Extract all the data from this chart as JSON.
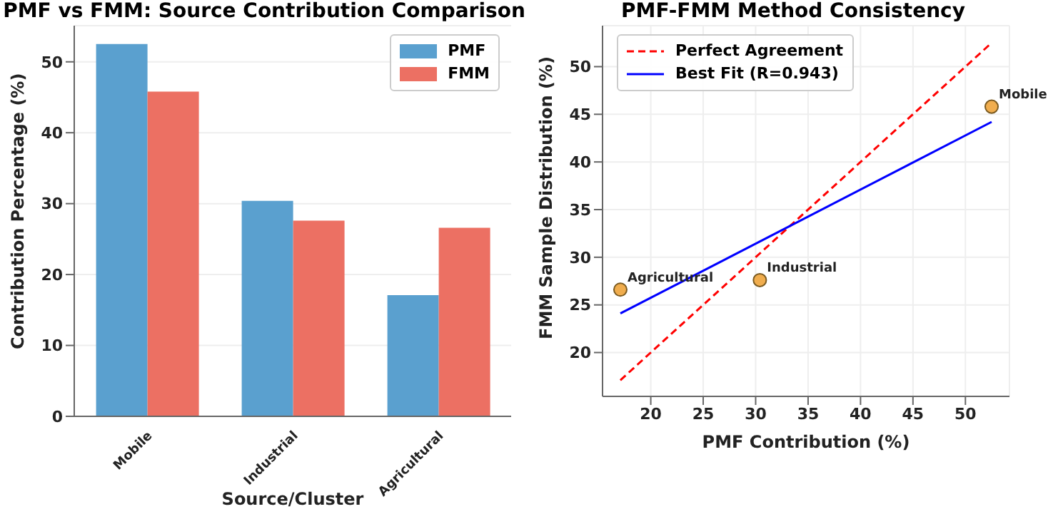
{
  "chart_data": [
    {
      "type": "bar",
      "title": "PMF vs FMM: Source Contribution Comparison",
      "xlabel": "Source/Cluster",
      "ylabel": "Contribution Percentage (%)",
      "categories": [
        "Mobile",
        "Industrial",
        "Agricultural"
      ],
      "series": [
        {
          "name": "PMF",
          "color": "#5aa0cf",
          "values": [
            52.5,
            30.4,
            17.1
          ]
        },
        {
          "name": "FMM",
          "color": "#ec7063",
          "values": [
            45.8,
            27.6,
            26.6
          ]
        }
      ],
      "ylim": [
        0,
        55.1
      ],
      "yticks": [
        0,
        10,
        20,
        30,
        40,
        50
      ],
      "grid": "y",
      "legend": "top right"
    },
    {
      "type": "scatter",
      "title": "PMF-FMM Method Consistency",
      "xlabel": "PMF Contribution (%)",
      "ylabel": "FMM Sample Distribution (%)",
      "series": [
        {
          "type": "line",
          "name": "Perfect Agreement",
          "color": "#ff0000",
          "line_style": "dashed",
          "marker": "none",
          "x": [
            17.1,
            52.5
          ],
          "values": [
            17.1,
            52.5
          ]
        },
        {
          "type": "line",
          "name": "Best Fit (R=0.943)",
          "color": "#0000ff",
          "line_style": "solid",
          "marker": "none",
          "x": [
            17.1,
            52.5
          ],
          "values": [
            24.1,
            44.2
          ]
        },
        {
          "type": "scatter",
          "color": "#f0ad4e",
          "marker": "circle",
          "x": [
            52.5,
            30.4,
            17.1
          ],
          "values": [
            45.8,
            27.6,
            26.6
          ]
        }
      ],
      "annotations": [
        {
          "text": "Mobile",
          "x": 52.5,
          "y": 45.8
        },
        {
          "text": "Industrial",
          "x": 30.4,
          "y": 27.6
        },
        {
          "text": "Agricultural",
          "x": 17.1,
          "y": 26.6
        }
      ],
      "xlim": [
        15.4,
        54.2
      ],
      "xticks": [
        20,
        25,
        30,
        35,
        40,
        45,
        50
      ],
      "ylim": [
        15.4,
        54.3
      ],
      "yticks": [
        20,
        25,
        30,
        35,
        40,
        45,
        50
      ],
      "grid": true,
      "legend": "top left"
    }
  ]
}
